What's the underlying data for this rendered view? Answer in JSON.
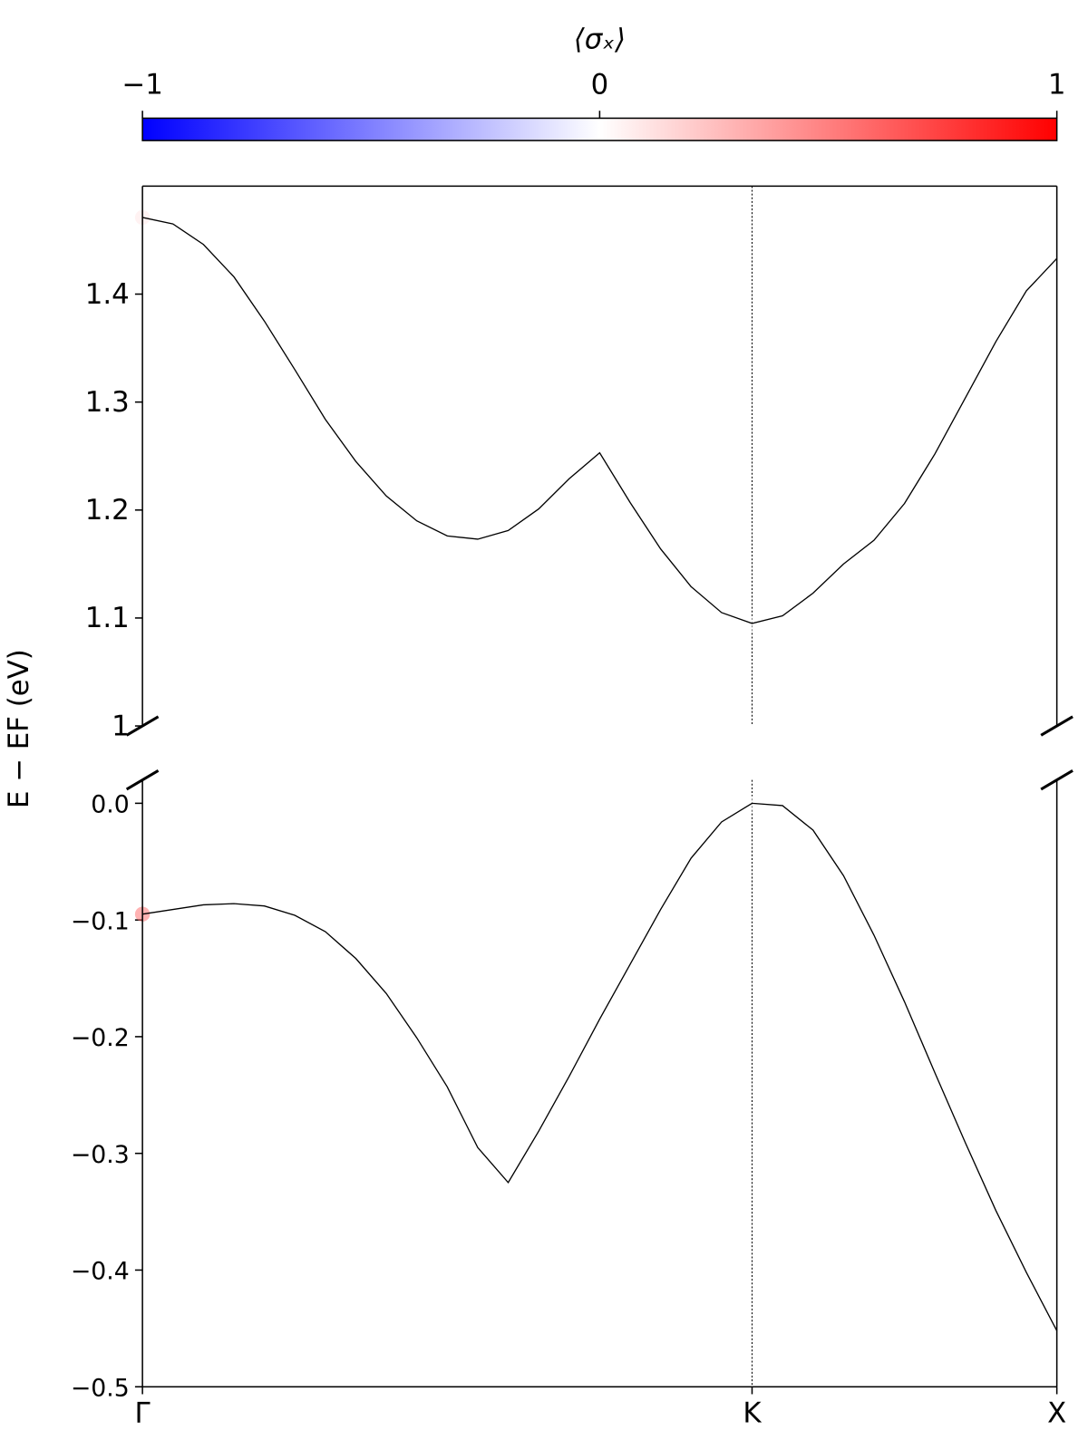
{
  "chart_data": {
    "type": "line",
    "ylabel": "E − EF (eV)",
    "x": [
      0,
      1,
      2,
      3,
      4,
      5,
      6,
      7,
      8,
      9,
      10,
      11,
      12,
      13,
      14,
      15,
      16,
      17,
      18,
      19,
      20,
      21,
      22,
      23,
      24,
      25,
      26,
      27,
      28,
      29,
      30
    ],
    "xlim": [
      0,
      30
    ],
    "xticks": [
      {
        "value": 0,
        "label": "Γ"
      },
      {
        "value": 20,
        "label": "K"
      },
      {
        "value": 30,
        "label": "X"
      }
    ],
    "line_color": "#000000",
    "colorbar": {
      "label": "⟨σₓ⟩",
      "lim": [
        -1,
        1
      ],
      "ticks": [
        {
          "value": -1,
          "label": "−1"
        },
        0,
        1
      ],
      "colors": [
        "#0000ff",
        "#ffffff",
        "#ff0000"
      ]
    },
    "panels": [
      {
        "ylim": [
          1.0,
          1.5
        ],
        "yticks": [
          1,
          1.1,
          1.2,
          1.3,
          1.4
        ],
        "series": [
          {
            "values": [
              1.471,
              1.465,
              1.446,
              1.416,
              1.375,
              1.33,
              1.284,
              1.245,
              1.213,
              1.19,
              1.176,
              1.173,
              1.181,
              1.201,
              1.229,
              1.253,
              1.207,
              1.164,
              1.129,
              1.105,
              1.095,
              1.102,
              1.123,
              1.15,
              1.172,
              1.206,
              1.252,
              1.304,
              1.356,
              1.403,
              1.433
            ],
            "spin": [
              0.1,
              0,
              0,
              0,
              0,
              0,
              0,
              0,
              0,
              0,
              0,
              0,
              0,
              0,
              0,
              0,
              0,
              0,
              0,
              0,
              0,
              0,
              0,
              0,
              0,
              0,
              0,
              0,
              0,
              0,
              0
            ]
          }
        ]
      },
      {
        "ylim": [
          -0.5,
          0.02
        ],
        "yticks": [
          {
            "value": -0.5,
            "label": "−0.5"
          },
          {
            "value": -0.4,
            "label": "−0.4"
          },
          {
            "value": -0.3,
            "label": "−0.3"
          },
          {
            "value": -0.2,
            "label": "−0.2"
          },
          {
            "value": -0.1,
            "label": "−0.1"
          },
          {
            "value": 0,
            "label": "0.0"
          }
        ],
        "series": [
          {
            "values": [
              -0.095,
              -0.091,
              -0.087,
              -0.086,
              -0.088,
              -0.096,
              -0.11,
              -0.133,
              -0.163,
              -0.201,
              -0.243,
              -0.295,
              -0.325,
              -0.281,
              -0.234,
              -0.185,
              -0.138,
              -0.091,
              -0.047,
              -0.016,
              0.0,
              -0.002,
              -0.023,
              -0.062,
              -0.113,
              -0.17,
              -0.231,
              -0.291,
              -0.349,
              -0.402,
              -0.452
            ],
            "spin": [
              0.6,
              0,
              0,
              0,
              0,
              0,
              0,
              0,
              0,
              0,
              0,
              0,
              0,
              0,
              0,
              0,
              0,
              0,
              0,
              0,
              0,
              0,
              0,
              0,
              0,
              0,
              0,
              0,
              0,
              0,
              0
            ]
          }
        ]
      }
    ]
  }
}
